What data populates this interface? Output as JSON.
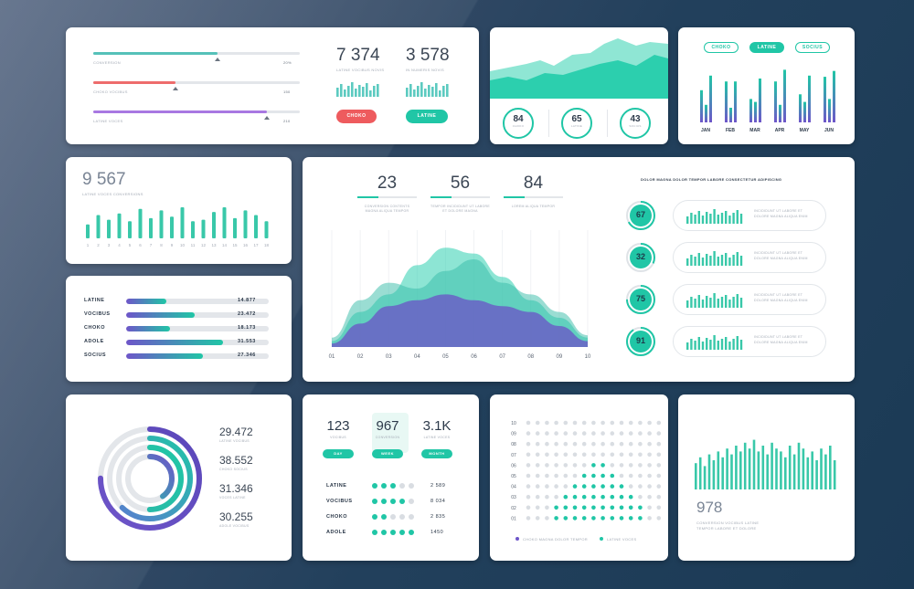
{
  "colors": {
    "teal": "#20c6a6",
    "purple": "#6e55c9",
    "red": "#ee5b5e",
    "violet": "#a972e3",
    "grey": "#e2e5e9",
    "text": "#2d3a4a"
  },
  "progress_card": {
    "bars": [
      {
        "label": "CONVERSION",
        "value": "20%",
        "fill": 0.6,
        "color": "#55c1b9"
      },
      {
        "label": "CHOKO VOCIBUS",
        "value": "150",
        "fill": 0.4,
        "color": "#ee6c6c"
      },
      {
        "label": "LATINE VOCES",
        "value": "210",
        "fill": 0.84,
        "color": "#a878e2"
      }
    ],
    "stats": [
      {
        "value": "7 374",
        "label": "LATINE VOCIBUS NOVIS"
      },
      {
        "value": "3 578",
        "label": "IN NUMERIS NOVIS"
      }
    ],
    "buttons": [
      "CHOKO",
      "LATINE"
    ]
  },
  "area_card": {
    "circles": [
      {
        "value": "84",
        "label": "CHOKO"
      },
      {
        "value": "65",
        "label": "LATINE"
      },
      {
        "value": "43",
        "label": "SOCIUS"
      }
    ]
  },
  "month_card": {
    "tabs": [
      "CHOKO",
      "LATINE",
      "SOCIUS"
    ],
    "chart_data": {
      "type": "bar",
      "categories": [
        "JAN",
        "FEB",
        "MAR",
        "APR",
        "MAY",
        "JUN"
      ],
      "series": [
        {
          "values": [
            55,
            70,
            40,
            70,
            48,
            78
          ]
        },
        {
          "values": [
            30,
            25,
            35,
            30,
            35,
            40
          ]
        },
        {
          "values": [
            80,
            70,
            75,
            90,
            80,
            88
          ]
        }
      ],
      "ylim": [
        0,
        100
      ]
    }
  },
  "count_card": {
    "value": "9 567",
    "label": "LATINE VOCES CONVERSIONS",
    "chart_data": {
      "type": "bar",
      "categories": [
        "1",
        "2",
        "3",
        "4",
        "5",
        "6",
        "7",
        "8",
        "9",
        "10",
        "11",
        "12",
        "13",
        "14",
        "15",
        "16",
        "17",
        "18"
      ],
      "values": [
        45,
        75,
        60,
        80,
        55,
        95,
        65,
        90,
        70,
        100,
        55,
        60,
        85,
        100,
        65,
        90,
        75,
        55
      ],
      "ylim": [
        0,
        100
      ]
    }
  },
  "hbar_card": {
    "chart_data": {
      "type": "bar",
      "categories": [
        "LATINE",
        "VOCIBUS",
        "CHOKO",
        "ADOLE",
        "SOCIUS"
      ],
      "values": [
        14877,
        23472,
        18173,
        31553,
        27346
      ],
      "value_labels": [
        "14.877",
        "23.472",
        "18.173",
        "31.553",
        "27.346"
      ],
      "fill_fractions": [
        0.28,
        0.48,
        0.31,
        0.68,
        0.54
      ]
    }
  },
  "main_card": {
    "stats": [
      {
        "value": "23",
        "label": "CONVERSION CONTENTS MAGNA ALIQUA TEMPOR"
      },
      {
        "value": "56",
        "label": "TEMPOR INCIDIDUNT UT LABORE ET DOLORE MAGNA"
      },
      {
        "value": "84",
        "label": "LOREM ALIQUA TEMPOR"
      }
    ],
    "chart_data": {
      "type": "area",
      "x": [
        "01",
        "02",
        "03",
        "04",
        "05",
        "06",
        "07",
        "08",
        "09",
        "10"
      ],
      "series": [
        {
          "values": [
            5,
            30,
            45,
            70,
            85,
            80,
            60,
            40,
            25,
            8
          ]
        },
        {
          "values": [
            8,
            40,
            55,
            50,
            65,
            75,
            55,
            45,
            30,
            10
          ]
        },
        {
          "values": [
            3,
            20,
            35,
            40,
            45,
            40,
            35,
            30,
            18,
            5
          ]
        }
      ],
      "ylim": [
        0,
        100
      ]
    },
    "right_title": "DOLOR MAGNA DOLOR TEMPOR LABORE CONSECTETUR ADIPISCING",
    "rows": [
      {
        "value": "67",
        "fill": 0.67,
        "text": "INCIDIDUNT UT LABORE ET DOLORE MAGNA ALIQUA ENIM"
      },
      {
        "value": "32",
        "fill": 0.32,
        "text": "INCIDIDUNT UT LABORE ET DOLORE MAGNA ALIQUA ENIM"
      },
      {
        "value": "75",
        "fill": 0.75,
        "text": "INCIDIDUNT UT LABORE ET DOLORE MAGNA ALIQUA ENIM"
      },
      {
        "value": "91",
        "fill": 0.91,
        "text": "INCIDIDUNT UT LABORE ET DOLORE MAGNA ALIQUA ENIM"
      }
    ]
  },
  "donut_card": {
    "chart_data": {
      "type": "pie",
      "values": [
        29472,
        38552,
        31346,
        30255
      ],
      "value_labels": [
        "29.472",
        "38.552",
        "31.346",
        "30.255"
      ],
      "labels": [
        "LATINE VOCIBUS",
        "CHOKO SOCIUS",
        "VOCES LATINE",
        "ADOLE VOCIBUS"
      ],
      "ring_fractions": [
        0.75,
        0.62,
        0.5,
        0.4
      ]
    }
  },
  "dots_card": {
    "stats": [
      {
        "value": "123",
        "label": "VOCIBUS",
        "tab": "DAY"
      },
      {
        "value": "967",
        "label": "CONVERSION",
        "tab": "WEEK"
      },
      {
        "value": "3.1K",
        "label": "LATINE VOCES",
        "tab": "MONTH"
      }
    ],
    "rows": [
      {
        "label": "LATINE",
        "filled": 3,
        "value": "2 589"
      },
      {
        "label": "VOCIBUS",
        "filled": 4,
        "value": "8 034"
      },
      {
        "label": "CHOKO",
        "filled": 2,
        "value": "2 835"
      },
      {
        "label": "ADOLE",
        "filled": 5,
        "value": "1450"
      }
    ]
  },
  "dotgrid_card": {
    "ylabels": [
      "10",
      "09",
      "08",
      "07",
      "06",
      "05",
      "04",
      "03",
      "02",
      "01"
    ],
    "column_heights": [
      0,
      0,
      0,
      1,
      2,
      3,
      4,
      5,
      5,
      4,
      3,
      2,
      1,
      0,
      0
    ],
    "legend": [
      "CHOKO MAGNA DOLOR TEMPOR",
      "LATINE VOCES"
    ]
  },
  "bars_card": {
    "value": "978",
    "label": "CONVERSION VOCIBUS LATINE TEMPOR LABORE ET DOLORE",
    "chart_data": {
      "type": "bar",
      "values": [
        45,
        55,
        40,
        60,
        50,
        65,
        55,
        70,
        60,
        75,
        65,
        80,
        70,
        85,
        65,
        75,
        60,
        80,
        70,
        65,
        55,
        75,
        60,
        80,
        70,
        55,
        65,
        50,
        70,
        60,
        75,
        50
      ],
      "ylim": [
        0,
        100
      ]
    }
  }
}
